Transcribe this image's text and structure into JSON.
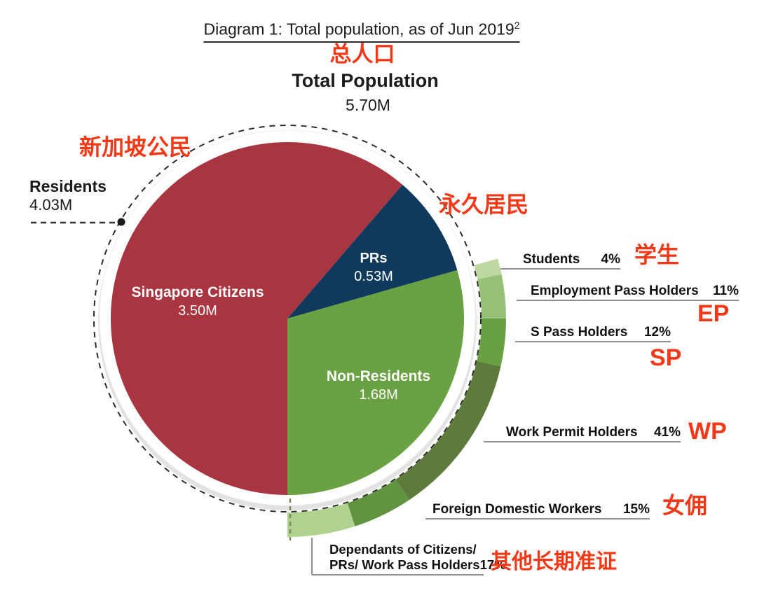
{
  "title": {
    "text": "Diagram 1: Total population, as of Jun 2019",
    "superscript": "2"
  },
  "header": {
    "zh": "总人口",
    "label": "Total Population",
    "value": "5.70M"
  },
  "residents_callout": {
    "zh": "新加坡公民",
    "label": "Residents",
    "value": "4.03M"
  },
  "prs_callout": {
    "zh": "永久居民"
  },
  "chart_data": {
    "type": "pie",
    "title": "Total Population",
    "total_display": "5.70M",
    "residents_display": "4.03M",
    "start_angle_deg": 180,
    "series": [
      {
        "name": "Singapore Citizens",
        "value": 3.5,
        "display": "3.50M",
        "color": "#A93541"
      },
      {
        "name": "PRs",
        "value": 0.53,
        "display": "0.53M",
        "color": "#0F3A5C"
      },
      {
        "name": "Non-Residents",
        "value": 1.68,
        "display": "1.68M",
        "color": "#6AA243"
      }
    ],
    "outer_ring": [
      {
        "label": "Students",
        "pct": 4,
        "pct_display": "4%",
        "color": "#BCD8A0",
        "zh": "学生"
      },
      {
        "label": "Employment Pass Holders",
        "pct": 11,
        "pct_display": "11%",
        "color": "#95C076",
        "zh": "EP"
      },
      {
        "label": "S Pass Holders",
        "pct": 12,
        "pct_display": "12%",
        "color": "#68A041",
        "zh": "SP"
      },
      {
        "label": "Work Permit Holders",
        "pct": 41,
        "pct_display": "41%",
        "color": "#5D7B3A",
        "zh": "WP"
      },
      {
        "label": "Foreign Domestic Workers",
        "pct": 15,
        "pct_display": "15%",
        "color": "#609440",
        "zh": "女佣"
      },
      {
        "label": "Dependants of Citizens/",
        "label_line2": "PRs/ Work Pass Holders",
        "pct": 17,
        "pct_display": "17%",
        "color": "#AFD28F",
        "zh": "其他长期准证"
      }
    ],
    "annotation_color": "#F23817",
    "legend_position": "outside-right"
  }
}
